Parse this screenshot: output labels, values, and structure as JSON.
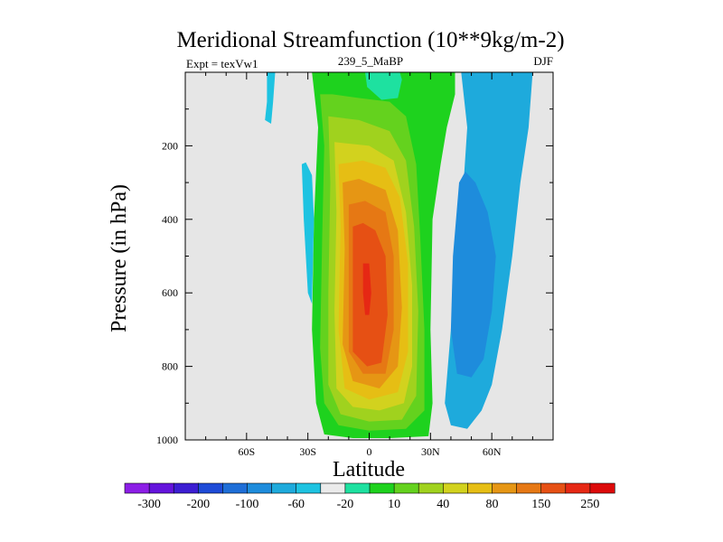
{
  "chart_data": {
    "type": "heatmap",
    "title": "Meridional Streamfunction (10**9kg/m-2)",
    "subtitle_left": "Expt = texVw1",
    "subtitle_center": "239_5_MaBP",
    "subtitle_right": "DJF",
    "xlabel": "Latitude",
    "ylabel": "Pressure (in hPa)",
    "xlim": [
      -90,
      90
    ],
    "ylim": [
      1000,
      0
    ],
    "x_ticks": [
      {
        "value": -60,
        "label": "60S"
      },
      {
        "value": -30,
        "label": "30S"
      },
      {
        "value": 0,
        "label": "0"
      },
      {
        "value": 30,
        "label": "30N"
      },
      {
        "value": 60,
        "label": "60N"
      }
    ],
    "y_ticks": [
      {
        "value": 200,
        "label": "200"
      },
      {
        "value": 400,
        "label": "400"
      },
      {
        "value": 600,
        "label": "600"
      },
      {
        "value": 800,
        "label": "800"
      },
      {
        "value": 1000,
        "label": "1000"
      }
    ],
    "background_color": "#e6e6e6",
    "colorbar": {
      "levels": [
        "-300",
        "-200",
        "-100",
        "-60",
        "-20",
        "10",
        "40",
        "80",
        "150",
        "250"
      ],
      "colors": [
        "#8c1ee6",
        "#6414dc",
        "#3c1ed2",
        "#1e4bd7",
        "#1e6ed7",
        "#1e8cdc",
        "#1eaadc",
        "#1ec3e1",
        "#ebebeb",
        "#1ee1a0",
        "#1ed21e",
        "#64d21e",
        "#a0d21e",
        "#d2d21e",
        "#e6be14",
        "#e69614",
        "#e67814",
        "#e65014",
        "#e62814",
        "#dc0a0a"
      ]
    },
    "contour_regions": [
      {
        "level": 10,
        "color": "#1ed21e",
        "center": [
          0,
          500
        ],
        "description": "outer positive cell"
      },
      {
        "level": 20,
        "color": "#64d21e",
        "center": [
          0,
          560
        ]
      },
      {
        "level": 40,
        "color": "#a0d21e",
        "center": [
          0,
          560
        ]
      },
      {
        "level": 60,
        "color": "#d2d21e",
        "center": [
          0,
          560
        ]
      },
      {
        "level": 80,
        "color": "#e6be14",
        "center": [
          0,
          570
        ]
      },
      {
        "level": 100,
        "color": "#e69614",
        "center": [
          0,
          580
        ]
      },
      {
        "level": 150,
        "color": "#e67814",
        "center": [
          0,
          580
        ]
      },
      {
        "level": 200,
        "color": "#e65014",
        "center": [
          0,
          580
        ]
      },
      {
        "level": 250,
        "color": "#e62814",
        "center": [
          -1,
          600
        ]
      },
      {
        "level": -10,
        "color": "#1eaadc",
        "center": [
          45,
          450
        ],
        "description": "northern negative cell"
      },
      {
        "level": -20,
        "color": "#1e8cdc",
        "center": [
          42,
          600
        ]
      },
      {
        "level": -10,
        "color": "#1ec3e1",
        "center": [
          -28,
          380
        ],
        "description": "southern negative filament"
      },
      {
        "level": -10,
        "color": "#1ec3e1",
        "center": [
          -48,
          80
        ],
        "description": "southern upper filament"
      }
    ]
  }
}
